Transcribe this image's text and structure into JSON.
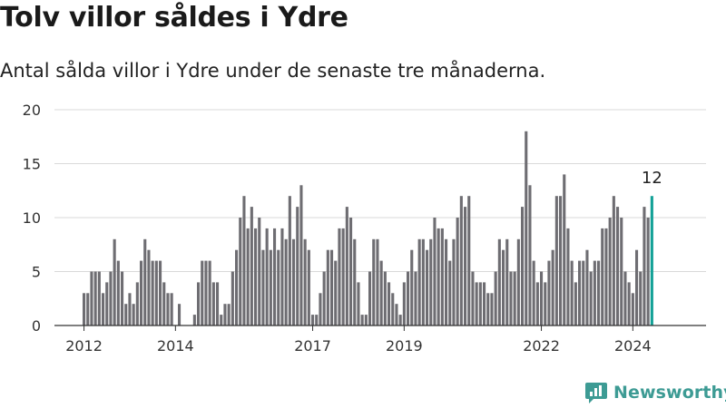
{
  "header": {
    "title": "Tolv villor såldes i Ydre",
    "subtitle": "Antal sålda villor i Ydre under de senaste tre månaderna."
  },
  "brand": {
    "name": "Newsworthy",
    "color": "#3d9b94"
  },
  "colors": {
    "bar": "#6e6d72",
    "highlight": "#13a197",
    "grid": "#d9d9d9"
  },
  "chart_data": {
    "type": "bar",
    "title": "Tolv villor såldes i Ydre",
    "subtitle": "Antal sålda villor i Ydre under de senaste tre månaderna.",
    "ylim": [
      0,
      20
    ],
    "yticks": [
      0,
      5,
      10,
      15,
      20
    ],
    "xticks": [
      "2012",
      "2014",
      "2017",
      "2019",
      "2022",
      "2024"
    ],
    "grid": true,
    "start_month": "2012-01",
    "highlight_label": "12",
    "values": [
      3,
      3,
      5,
      5,
      5,
      3,
      4,
      5,
      8,
      6,
      5,
      2,
      3,
      2,
      4,
      6,
      8,
      7,
      6,
      6,
      6,
      4,
      3,
      3,
      0,
      2,
      0,
      0,
      0,
      1,
      4,
      6,
      6,
      6,
      4,
      4,
      1,
      2,
      2,
      5,
      7,
      10,
      12,
      9,
      11,
      9,
      10,
      7,
      9,
      7,
      9,
      7,
      9,
      8,
      12,
      8,
      11,
      13,
      8,
      7,
      1,
      1,
      3,
      5,
      7,
      7,
      6,
      9,
      9,
      11,
      10,
      8,
      4,
      1,
      1,
      5,
      8,
      8,
      6,
      5,
      4,
      3,
      2,
      1,
      4,
      5,
      7,
      5,
      8,
      8,
      7,
      8,
      10,
      9,
      9,
      8,
      6,
      8,
      10,
      12,
      11,
      12,
      5,
      4,
      4,
      4,
      3,
      3,
      5,
      8,
      7,
      8,
      5,
      5,
      8,
      11,
      18,
      13,
      6,
      4,
      5,
      4,
      6,
      7,
      12,
      12,
      14,
      9,
      6,
      4,
      6,
      6,
      7,
      5,
      6,
      6,
      9,
      9,
      10,
      12,
      11,
      10,
      5,
      4,
      3,
      7,
      5,
      11,
      10,
      12
    ]
  }
}
